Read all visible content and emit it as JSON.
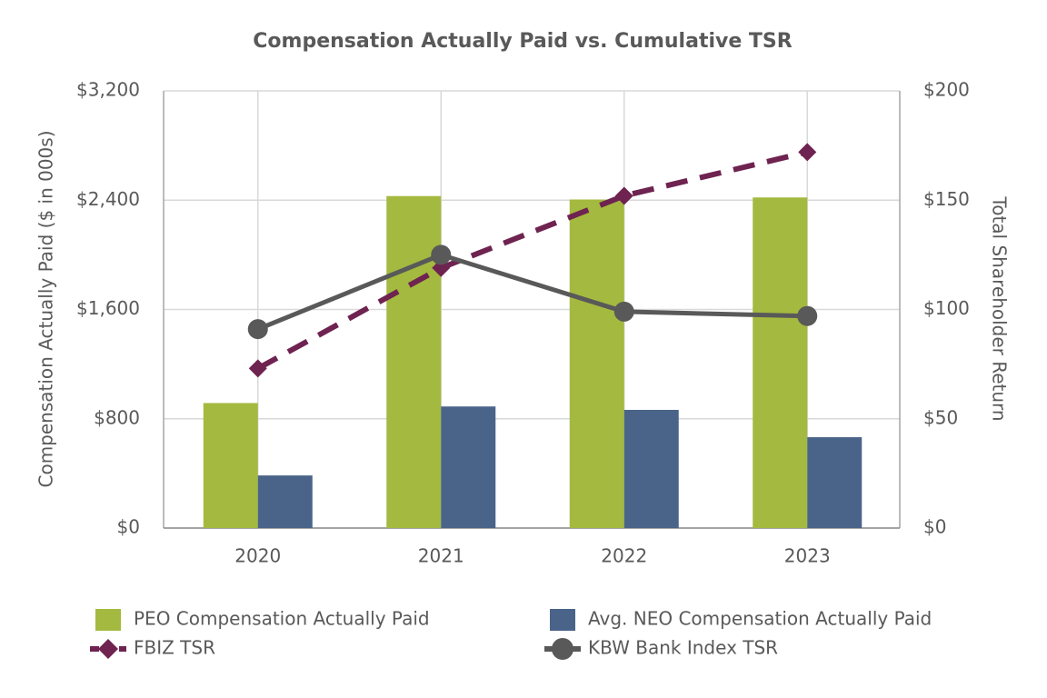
{
  "chart_data": {
    "type": "bar_line",
    "title": "Compensation Actually Paid vs. Cumulative TSR",
    "y_axis_label": "Compensation Actually Paid ($ in 000s)",
    "y2_axis_label": "Total Shareholder Return",
    "categories": [
      "2020",
      "2021",
      "2022",
      "2023"
    ],
    "series": [
      {
        "name": "PEO Compensation Actually Paid",
        "type": "bar",
        "color": "#a4b93f",
        "values": [
          915,
          2430,
          2405,
          2420
        ]
      },
      {
        "name": "Avg. NEO Compensation Actually Paid",
        "type": "bar",
        "color": "#4a6489",
        "values": [
          385,
          890,
          865,
          665
        ]
      },
      {
        "name": "FBIZ TSR",
        "type": "line",
        "axis": "y2",
        "dashed": true,
        "marker": "diamond",
        "color": "#6e2350",
        "values": [
          73,
          119,
          152,
          172
        ]
      },
      {
        "name": "KBW Bank Index TSR",
        "type": "line",
        "axis": "y2",
        "dashed": false,
        "marker": "circle",
        "color": "#595959",
        "values": [
          91,
          125,
          99,
          97
        ]
      }
    ],
    "ylim": [
      0,
      3200
    ],
    "yticks": [
      {
        "value": 0,
        "label": "$0"
      },
      {
        "value": 800,
        "label": "$800"
      },
      {
        "value": 1600,
        "label": "$1,600"
      },
      {
        "value": 2400,
        "label": "$2,400"
      },
      {
        "value": 3200,
        "label": "$3,200"
      }
    ],
    "y2lim": [
      0,
      200
    ],
    "y2ticks": [
      {
        "value": 0,
        "label": "$0"
      },
      {
        "value": 50,
        "label": "$50"
      },
      {
        "value": 100,
        "label": "$100"
      },
      {
        "value": 150,
        "label": "$150"
      },
      {
        "value": 200,
        "label": "$200"
      }
    ],
    "grid": true
  }
}
